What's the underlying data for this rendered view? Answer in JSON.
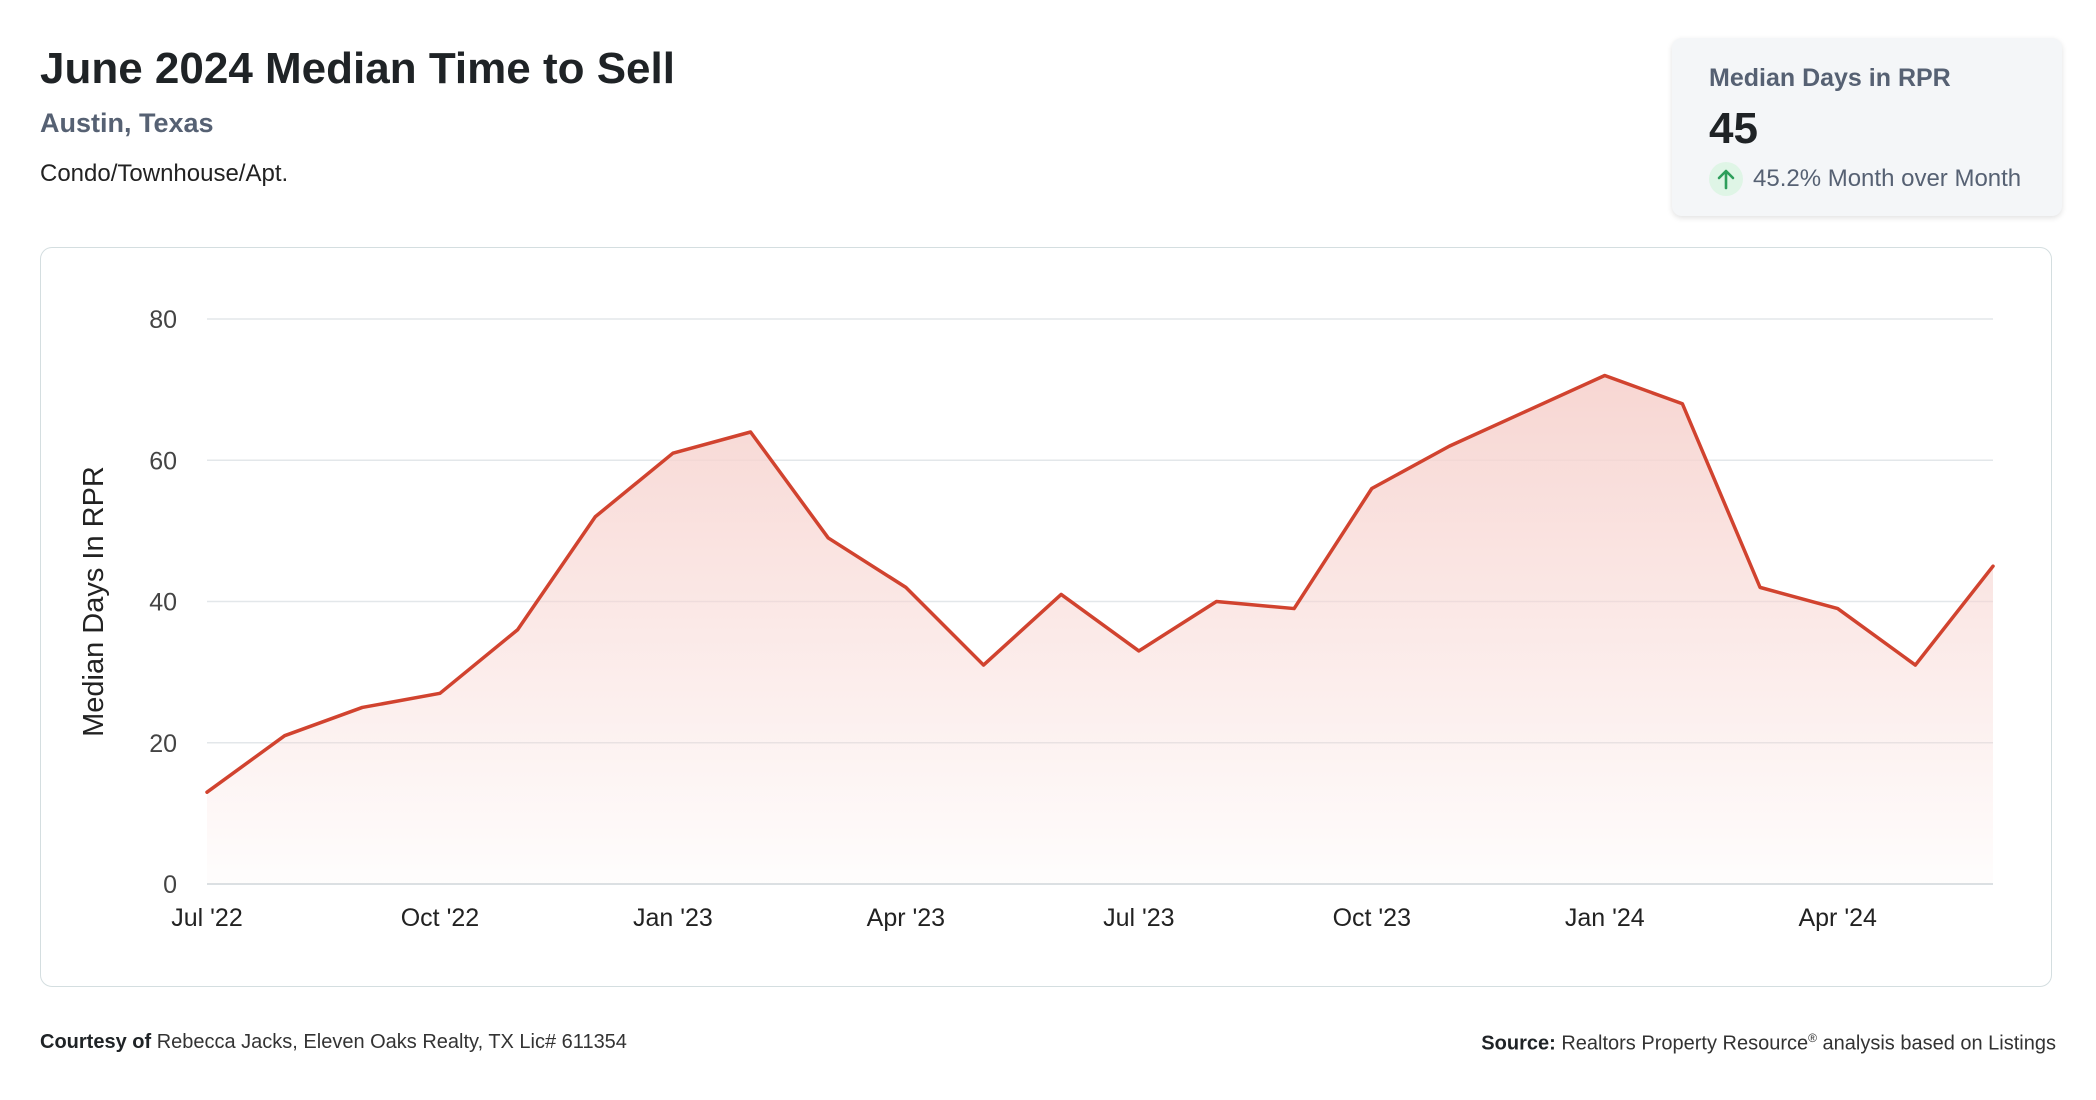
{
  "header": {
    "title": "June 2024 Median Time to Sell",
    "location": "Austin, Texas",
    "property_type": "Condo/Townhouse/Apt."
  },
  "stat_card": {
    "label": "Median Days in RPR",
    "value": "45",
    "change_text": "45.2% Month over Month",
    "change_icon": "arrow-up-icon",
    "change_color": "#2e9e5b"
  },
  "chart_data": {
    "type": "area",
    "ylabel": "Median Days In RPR",
    "xlabel": "",
    "ylim": [
      0,
      80
    ],
    "yticks": [
      0,
      20,
      40,
      60,
      80
    ],
    "grid": true,
    "line_color": "#d1432f",
    "fill_color": "#f7d4d0",
    "x": [
      "2022-07",
      "2022-08",
      "2022-09",
      "2022-10",
      "2022-11",
      "2022-12",
      "2023-01",
      "2023-02",
      "2023-03",
      "2023-04",
      "2023-05",
      "2023-06",
      "2023-07",
      "2023-08",
      "2023-09",
      "2023-10",
      "2023-11",
      "2023-12",
      "2024-01",
      "2024-02",
      "2024-03",
      "2024-04",
      "2024-05",
      "2024-06"
    ],
    "x_tick_labels": [
      "Jul '22",
      "",
      "",
      "Oct '22",
      "",
      "",
      "Jan '23",
      "",
      "",
      "Apr '23",
      "",
      "",
      "Jul '23",
      "",
      "",
      "Oct '23",
      "",
      "",
      "Jan '24",
      "",
      "",
      "Apr '24",
      "",
      ""
    ],
    "values": [
      13,
      21,
      25,
      27,
      36,
      52,
      61,
      64,
      49,
      42,
      31,
      41,
      33,
      40,
      39,
      56,
      62,
      67,
      72,
      68,
      42,
      39,
      31,
      45
    ]
  },
  "footer": {
    "courtesy_label": "Courtesy of",
    "courtesy_text": "Rebecca Jacks, Eleven Oaks Realty, TX Lic# 611354",
    "source_label": "Source:",
    "source_text": "Realtors Property Resource",
    "source_mark": "®",
    "source_suffix": "analysis based on Listings"
  }
}
